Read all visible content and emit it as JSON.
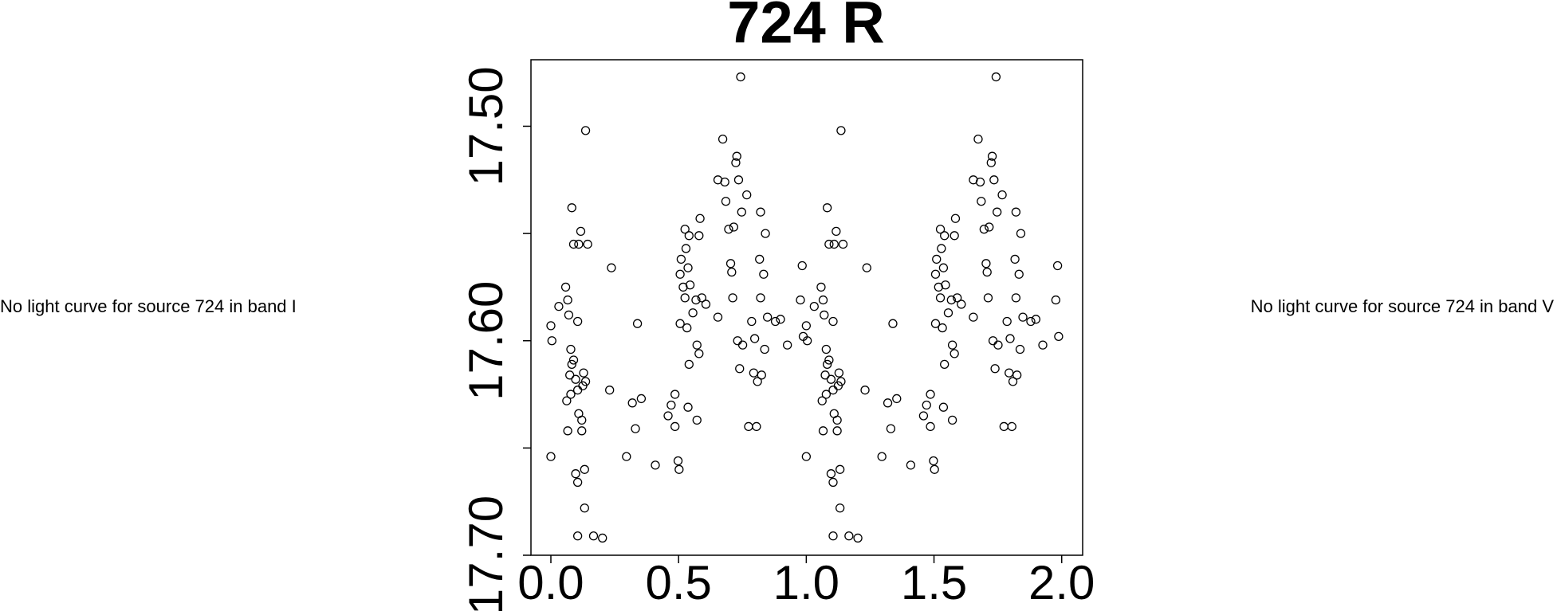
{
  "chart_data": {
    "type": "scatter",
    "title": "724 R",
    "color": "#000000",
    "x": [
      0.0,
      0.004,
      0.0,
      0.031,
      0.058,
      0.066,
      0.07,
      0.082,
      0.078,
      0.089,
      0.109,
      0.105,
      0.089,
      0.074,
      0.062,
      0.066,
      0.082,
      0.078,
      0.097,
      0.105,
      0.109,
      0.117,
      0.121,
      0.125,
      0.128,
      0.136,
      0.121,
      0.097,
      0.105,
      0.132,
      0.136,
      0.144,
      0.132,
      0.105,
      0.167,
      0.202,
      0.23,
      0.237,
      0.296,
      0.319,
      0.331,
      0.339,
      0.354,
      0.409,
      0.459,
      0.471,
      0.486,
      0.486,
      0.498,
      0.502,
      0.506,
      0.506,
      0.51,
      0.518,
      0.525,
      0.525,
      0.529,
      0.533,
      0.537,
      0.537,
      0.541,
      0.545,
      0.556,
      0.568,
      0.572,
      0.572,
      0.58,
      0.58,
      0.584,
      0.591,
      0.607,
      0.541,
      0.654,
      0.654,
      0.673,
      0.681,
      0.685,
      0.696,
      0.704,
      0.708,
      0.712,
      0.716,
      0.724,
      0.728,
      0.731,
      0.735,
      0.743,
      0.739,
      0.747,
      0.751,
      0.767,
      0.774,
      0.786,
      0.794,
      0.798,
      0.805,
      0.809,
      0.817,
      0.821,
      0.821,
      0.825,
      0.833,
      0.837,
      0.84,
      0.848,
      0.879,
      0.899,
      0.926,
      0.977,
      0.984,
      0.988,
      1.0,
      1.004,
      1.0,
      1.031,
      1.058,
      1.066,
      1.07,
      1.082,
      1.078,
      1.089,
      1.109,
      1.105,
      1.089,
      1.074,
      1.062,
      1.066,
      1.082,
      1.078,
      1.097,
      1.105,
      1.109,
      1.117,
      1.121,
      1.125,
      1.128,
      1.136,
      1.121,
      1.097,
      1.105,
      1.132,
      1.136,
      1.144,
      1.132,
      1.105,
      1.167,
      1.202,
      1.23,
      1.237,
      1.296,
      1.319,
      1.331,
      1.339,
      1.354,
      1.409,
      1.459,
      1.471,
      1.486,
      1.486,
      1.498,
      1.502,
      1.506,
      1.506,
      1.51,
      1.518,
      1.525,
      1.525,
      1.529,
      1.533,
      1.537,
      1.537,
      1.541,
      1.545,
      1.556,
      1.568,
      1.572,
      1.572,
      1.58,
      1.58,
      1.584,
      1.591,
      1.607,
      1.541,
      1.654,
      1.654,
      1.673,
      1.681,
      1.685,
      1.696,
      1.704,
      1.708,
      1.712,
      1.716,
      1.724,
      1.728,
      1.731,
      1.735,
      1.743,
      1.739,
      1.747,
      1.751,
      1.767,
      1.774,
      1.786,
      1.794,
      1.798,
      1.805,
      1.809,
      1.817,
      1.821,
      1.821,
      1.825,
      1.833,
      1.837,
      1.84,
      1.848,
      1.879,
      1.899,
      1.926,
      1.977,
      1.984,
      1.988
    ],
    "values": [
      17.593,
      17.6,
      17.654,
      17.584,
      17.575,
      17.581,
      17.588,
      17.538,
      17.604,
      17.555,
      17.555,
      17.591,
      17.609,
      17.616,
      17.628,
      17.642,
      17.611,
      17.625,
      17.618,
      17.623,
      17.634,
      17.549,
      17.637,
      17.621,
      17.615,
      17.619,
      17.642,
      17.662,
      17.666,
      17.66,
      17.502,
      17.555,
      17.678,
      17.691,
      17.691,
      17.692,
      17.623,
      17.566,
      17.654,
      17.629,
      17.641,
      17.592,
      17.627,
      17.658,
      17.635,
      17.63,
      17.625,
      17.64,
      17.656,
      17.66,
      17.592,
      17.569,
      17.562,
      17.575,
      17.58,
      17.548,
      17.557,
      17.594,
      17.566,
      17.631,
      17.551,
      17.574,
      17.587,
      17.581,
      17.637,
      17.602,
      17.606,
      17.551,
      17.543,
      17.58,
      17.583,
      17.611,
      17.589,
      17.525,
      17.506,
      17.526,
      17.535,
      17.548,
      17.564,
      17.568,
      17.58,
      17.547,
      17.517,
      17.514,
      17.6,
      17.525,
      17.477,
      17.613,
      17.54,
      17.602,
      17.532,
      17.64,
      17.591,
      17.615,
      17.599,
      17.64,
      17.619,
      17.562,
      17.54,
      17.58,
      17.616,
      17.569,
      17.604,
      17.55,
      17.589,
      17.591,
      17.59,
      17.602,
      17.581,
      17.565,
      17.598,
      17.593,
      17.6,
      17.654,
      17.584,
      17.575,
      17.581,
      17.588,
      17.538,
      17.604,
      17.555,
      17.555,
      17.591,
      17.609,
      17.616,
      17.628,
      17.642,
      17.611,
      17.625,
      17.618,
      17.623,
      17.634,
      17.549,
      17.637,
      17.621,
      17.615,
      17.619,
      17.642,
      17.662,
      17.666,
      17.66,
      17.502,
      17.555,
      17.678,
      17.691,
      17.691,
      17.692,
      17.623,
      17.566,
      17.654,
      17.629,
      17.641,
      17.592,
      17.627,
      17.658,
      17.635,
      17.63,
      17.625,
      17.64,
      17.656,
      17.66,
      17.592,
      17.569,
      17.562,
      17.575,
      17.58,
      17.548,
      17.557,
      17.594,
      17.566,
      17.631,
      17.551,
      17.574,
      17.587,
      17.581,
      17.637,
      17.602,
      17.606,
      17.551,
      17.543,
      17.58,
      17.583,
      17.611,
      17.589,
      17.525,
      17.506,
      17.526,
      17.535,
      17.548,
      17.564,
      17.568,
      17.58,
      17.547,
      17.517,
      17.514,
      17.6,
      17.525,
      17.477,
      17.613,
      17.54,
      17.602,
      17.532,
      17.64,
      17.591,
      17.615,
      17.599,
      17.64,
      17.619,
      17.562,
      17.54,
      17.58,
      17.616,
      17.569,
      17.604,
      17.55,
      17.589,
      17.591,
      17.59,
      17.602,
      17.581,
      17.565,
      17.598
    ],
    "xlim": [
      -0.078,
      2.082
    ],
    "xticks": [
      {
        "value": 0,
        "label": "0.0"
      },
      {
        "value": 0.5,
        "label": "0.5"
      },
      {
        "value": 1,
        "label": "1.0"
      },
      {
        "value": 1.5,
        "label": "1.5"
      },
      {
        "value": 2,
        "label": "2.0"
      }
    ],
    "ylim": [
      17.7,
      17.469
    ],
    "yticks": [
      {
        "value": 17.5,
        "label": "17.50"
      },
      {
        "value": 17.55,
        "label": null
      },
      {
        "value": 17.6,
        "label": "17.60"
      },
      {
        "value": 17.65,
        "label": null
      },
      {
        "value": 17.7,
        "label": "17.70"
      }
    ],
    "grid": false
  },
  "side_messages": [
    "No light curve for source 724 in band I",
    "No light curve for source 724 in band V"
  ]
}
